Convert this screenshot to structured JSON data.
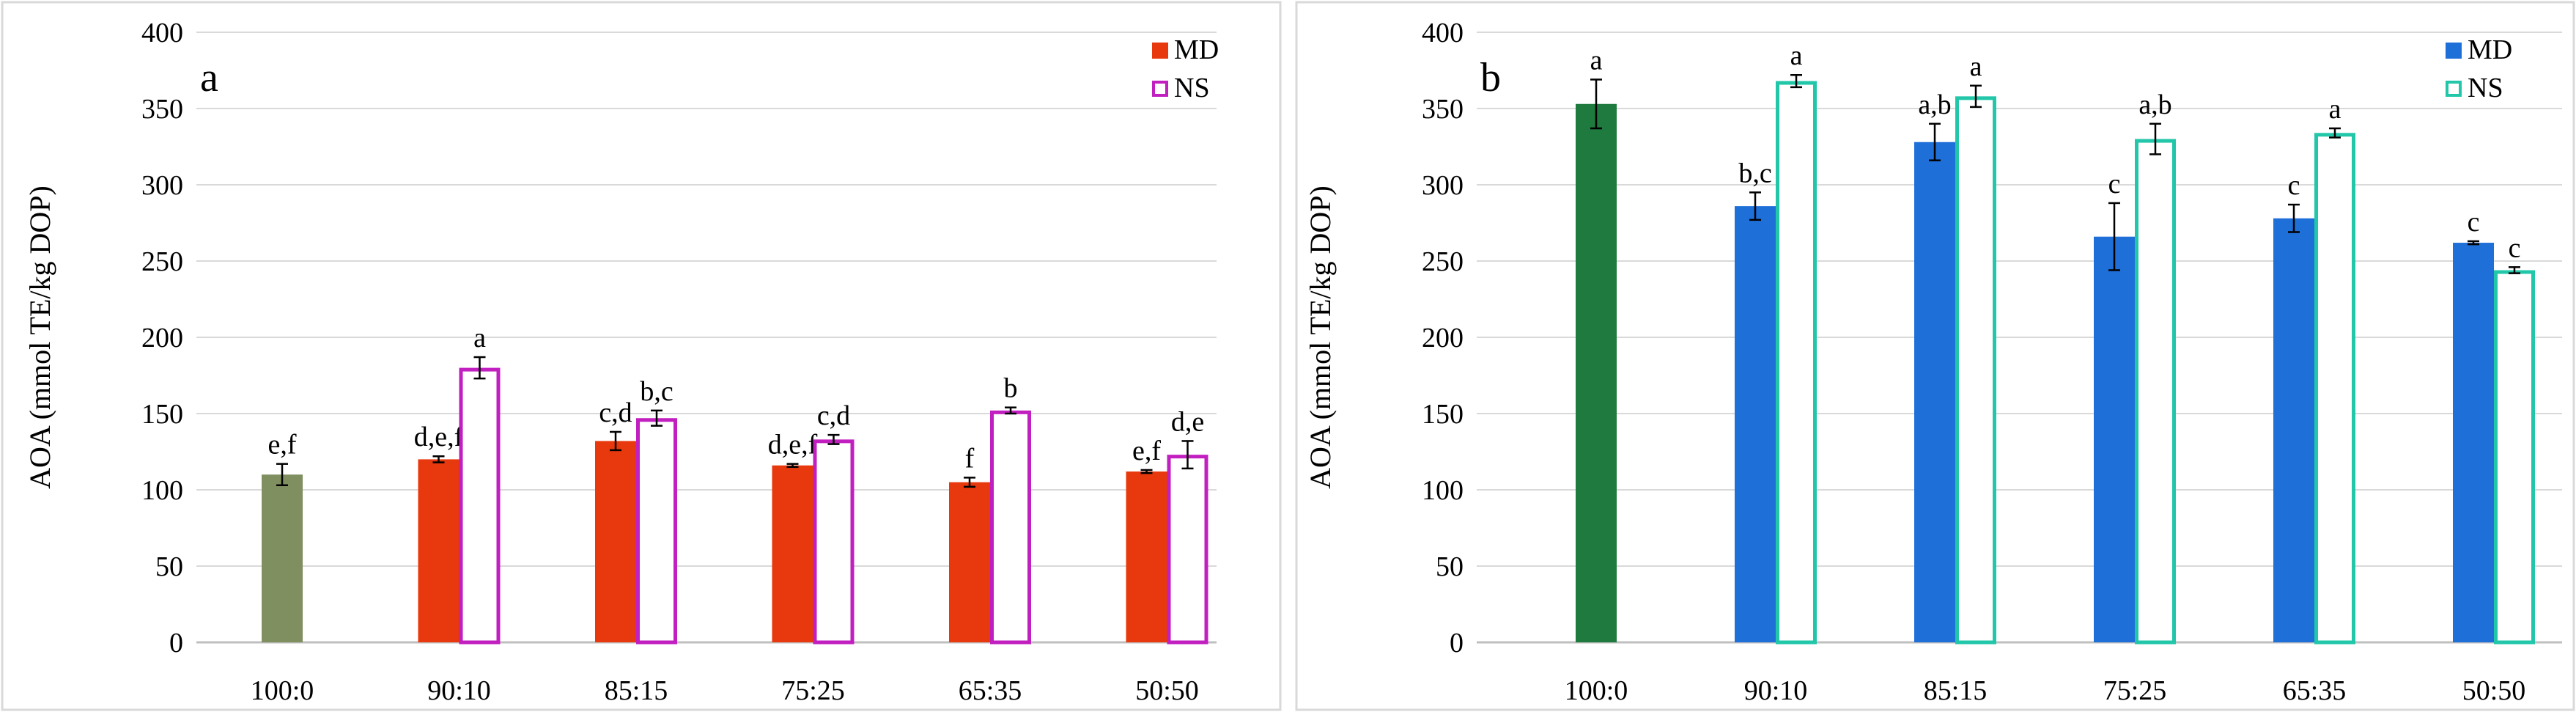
{
  "chart_data": [
    {
      "type": "bar",
      "panel_label": "a",
      "title": "",
      "xlabel": "",
      "ylabel": "AOA (mmol TE/kg DOP)",
      "ylim": [
        0,
        400
      ],
      "yticks": [
        0,
        50,
        100,
        150,
        200,
        250,
        300,
        350,
        400
      ],
      "grid": true,
      "legend_position": "top-right",
      "categories": [
        "100:0",
        "90:10",
        "85:15",
        "75:25",
        "65:35",
        "50:50"
      ],
      "control": {
        "category": "100:0",
        "value": 110,
        "error": 7,
        "label": "e,f",
        "color": "#7f8f5f"
      },
      "series": [
        {
          "name": "MD",
          "style": "filled",
          "color": "#e8380d",
          "values": [
            null,
            120,
            132,
            116,
            105,
            112
          ],
          "errors": [
            null,
            2,
            6,
            1,
            3,
            1
          ],
          "labels": [
            null,
            "d,e,f",
            "c,d",
            "d,e,f",
            "f",
            "e,f"
          ]
        },
        {
          "name": "NS",
          "style": "outline",
          "color": "#c21fc0",
          "values": [
            null,
            180,
            147,
            133,
            152,
            123
          ],
          "errors": [
            null,
            7,
            5,
            3,
            2,
            9
          ],
          "labels": [
            null,
            "a",
            "b,c",
            "c,d",
            "b",
            "d,e"
          ]
        }
      ]
    },
    {
      "type": "bar",
      "panel_label": "b",
      "title": "",
      "xlabel": "",
      "ylabel": "AOA (mmol TE/kg DOP)",
      "ylim": [
        0,
        400
      ],
      "yticks": [
        0,
        50,
        100,
        150,
        200,
        250,
        300,
        350,
        400
      ],
      "grid": true,
      "legend_position": "top-right",
      "categories": [
        "100:0",
        "90:10",
        "85:15",
        "75:25",
        "65:35",
        "50:50"
      ],
      "control": {
        "category": "100:0",
        "value": 353,
        "error": 16,
        "label": "a",
        "color": "#1e7a3e"
      },
      "series": [
        {
          "name": "MD",
          "style": "filled",
          "color": "#1f6fd9",
          "values": [
            null,
            286,
            328,
            266,
            278,
            262
          ],
          "errors": [
            null,
            9,
            12,
            22,
            9,
            1
          ],
          "labels": [
            null,
            "b,c",
            "a,b",
            "c",
            "c",
            "c"
          ]
        },
        {
          "name": "NS",
          "style": "outline",
          "color": "#22c7a9",
          "values": [
            null,
            368,
            358,
            330,
            334,
            244
          ],
          "errors": [
            null,
            4,
            7,
            10,
            3,
            2
          ],
          "labels": [
            null,
            "a",
            "a",
            "a,b",
            "a",
            "c"
          ]
        }
      ]
    }
  ]
}
